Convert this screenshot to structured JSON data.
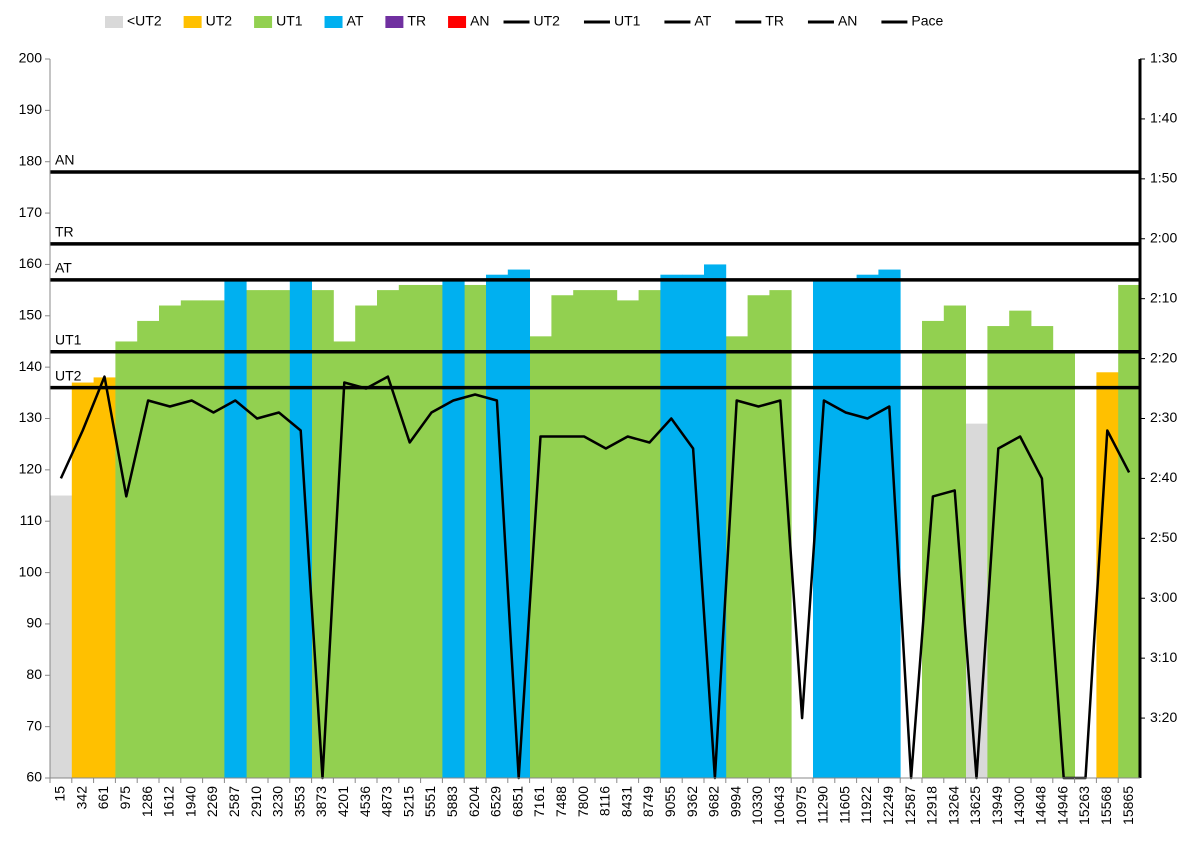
{
  "chart_data": {
    "type": "bar",
    "categories": [
      "15",
      "342",
      "661",
      "975",
      "1286",
      "1612",
      "1940",
      "2269",
      "2587",
      "2910",
      "3230",
      "3553",
      "3873",
      "4201",
      "4536",
      "4873",
      "5215",
      "5551",
      "5883",
      "6204",
      "6529",
      "6851",
      "7161",
      "7488",
      "7800",
      "8116",
      "8431",
      "8749",
      "9055",
      "9362",
      "9682",
      "9994",
      "10330",
      "10643",
      "10975",
      "11290",
      "11605",
      "11922",
      "12249",
      "12587",
      "12918",
      "13264",
      "13625",
      "13949",
      "14300",
      "14648",
      "14946",
      "15263",
      "15568",
      "15865"
    ],
    "ylim": [
      60,
      200
    ],
    "yticks": [
      60,
      70,
      80,
      90,
      100,
      110,
      120,
      130,
      140,
      150,
      160,
      170,
      180,
      190,
      200
    ],
    "y2lim": [
      210,
      90
    ],
    "y2ticks": [
      {
        "value": 90,
        "label": "1:30"
      },
      {
        "value": 100,
        "label": "1:40"
      },
      {
        "value": 110,
        "label": "1:50"
      },
      {
        "value": 120,
        "label": "2:00"
      },
      {
        "value": 130,
        "label": "2:10"
      },
      {
        "value": 140,
        "label": "2:20"
      },
      {
        "value": 150,
        "label": "2:30"
      },
      {
        "value": 160,
        "label": "2:40"
      },
      {
        "value": 170,
        "label": "2:50"
      },
      {
        "value": 180,
        "label": "3:00"
      },
      {
        "value": 190,
        "label": "3:10"
      },
      {
        "value": 200,
        "label": "3:20"
      }
    ],
    "grid": false,
    "series": [
      {
        "name": "<UT2",
        "type": "bar",
        "color": "#d9d9d9",
        "values": [
          115,
          null,
          null,
          null,
          null,
          null,
          null,
          null,
          null,
          null,
          null,
          null,
          null,
          null,
          null,
          null,
          null,
          null,
          null,
          null,
          null,
          null,
          null,
          null,
          null,
          null,
          null,
          null,
          null,
          null,
          null,
          null,
          null,
          null,
          null,
          null,
          null,
          null,
          null,
          null,
          null,
          null,
          129,
          null,
          null,
          null,
          null,
          null,
          null,
          null
        ]
      },
      {
        "name": "UT2",
        "type": "bar",
        "color": "#ffc000",
        "values": [
          null,
          137,
          138,
          null,
          null,
          null,
          null,
          null,
          null,
          null,
          null,
          null,
          null,
          null,
          null,
          null,
          null,
          null,
          null,
          null,
          null,
          null,
          null,
          null,
          null,
          null,
          null,
          null,
          null,
          null,
          null,
          null,
          null,
          null,
          null,
          null,
          null,
          null,
          null,
          null,
          null,
          null,
          null,
          null,
          null,
          null,
          null,
          null,
          139,
          null
        ]
      },
      {
        "name": "UT1",
        "type": "bar",
        "color": "#92d050",
        "values": [
          null,
          null,
          null,
          145,
          149,
          152,
          153,
          153,
          null,
          155,
          155,
          null,
          155,
          145,
          152,
          155,
          156,
          156,
          null,
          156,
          null,
          null,
          146,
          154,
          155,
          155,
          153,
          155,
          null,
          null,
          null,
          146,
          154,
          155,
          null,
          null,
          null,
          null,
          null,
          null,
          149,
          152,
          null,
          148,
          151,
          148,
          143,
          null,
          null,
          156
        ]
      },
      {
        "name": "AT",
        "type": "bar",
        "color": "#00b0f0",
        "values": [
          null,
          null,
          null,
          null,
          null,
          null,
          null,
          null,
          157,
          null,
          null,
          157,
          null,
          null,
          null,
          null,
          null,
          null,
          157,
          null,
          158,
          159,
          null,
          null,
          null,
          null,
          null,
          null,
          158,
          158,
          160,
          null,
          null,
          null,
          null,
          157,
          157,
          158,
          159,
          null,
          null,
          null,
          null,
          null,
          null,
          null,
          null,
          null,
          null,
          null
        ]
      },
      {
        "name": "TR",
        "type": "bar",
        "color": "#7030a0",
        "values": [
          null,
          null,
          null,
          null,
          null,
          null,
          null,
          null,
          null,
          null,
          null,
          null,
          null,
          null,
          null,
          null,
          null,
          null,
          null,
          null,
          null,
          null,
          null,
          null,
          null,
          null,
          null,
          null,
          null,
          null,
          null,
          null,
          null,
          null,
          null,
          null,
          null,
          null,
          null,
          null,
          null,
          null,
          null,
          null,
          null,
          null,
          null,
          null,
          null,
          null
        ]
      },
      {
        "name": "AN",
        "type": "bar",
        "color": "#ff0000",
        "values": [
          null,
          null,
          null,
          null,
          null,
          null,
          null,
          null,
          null,
          null,
          null,
          null,
          null,
          null,
          null,
          null,
          null,
          null,
          null,
          null,
          null,
          null,
          null,
          null,
          null,
          null,
          null,
          null,
          null,
          null,
          null,
          null,
          null,
          null,
          null,
          null,
          null,
          null,
          null,
          null,
          null,
          null,
          null,
          null,
          null,
          null,
          null,
          null,
          null,
          null
        ]
      },
      {
        "name": "UT2",
        "type": "threshold",
        "color": "#000000",
        "value": 136
      },
      {
        "name": "UT1",
        "type": "threshold",
        "color": "#000000",
        "value": 143
      },
      {
        "name": "AT",
        "type": "threshold",
        "color": "#000000",
        "value": 157
      },
      {
        "name": "TR",
        "type": "threshold",
        "color": "#000000",
        "value": 164
      },
      {
        "name": "AN",
        "type": "threshold",
        "color": "#000000",
        "value": 178
      },
      {
        "name": "Pace",
        "type": "line",
        "axis": "y2",
        "color": "#000000",
        "values": [
          160,
          152,
          143,
          163,
          147,
          148,
          147,
          149,
          147,
          150,
          149,
          152,
          210,
          144,
          145,
          143,
          154,
          149,
          147,
          146,
          147,
          210,
          153,
          153,
          153,
          155,
          153,
          154,
          150,
          155,
          210,
          147,
          148,
          147,
          200,
          147,
          149,
          150,
          148,
          210,
          163,
          162,
          210,
          155,
          153,
          160,
          210,
          210,
          152,
          159
        ]
      }
    ]
  }
}
